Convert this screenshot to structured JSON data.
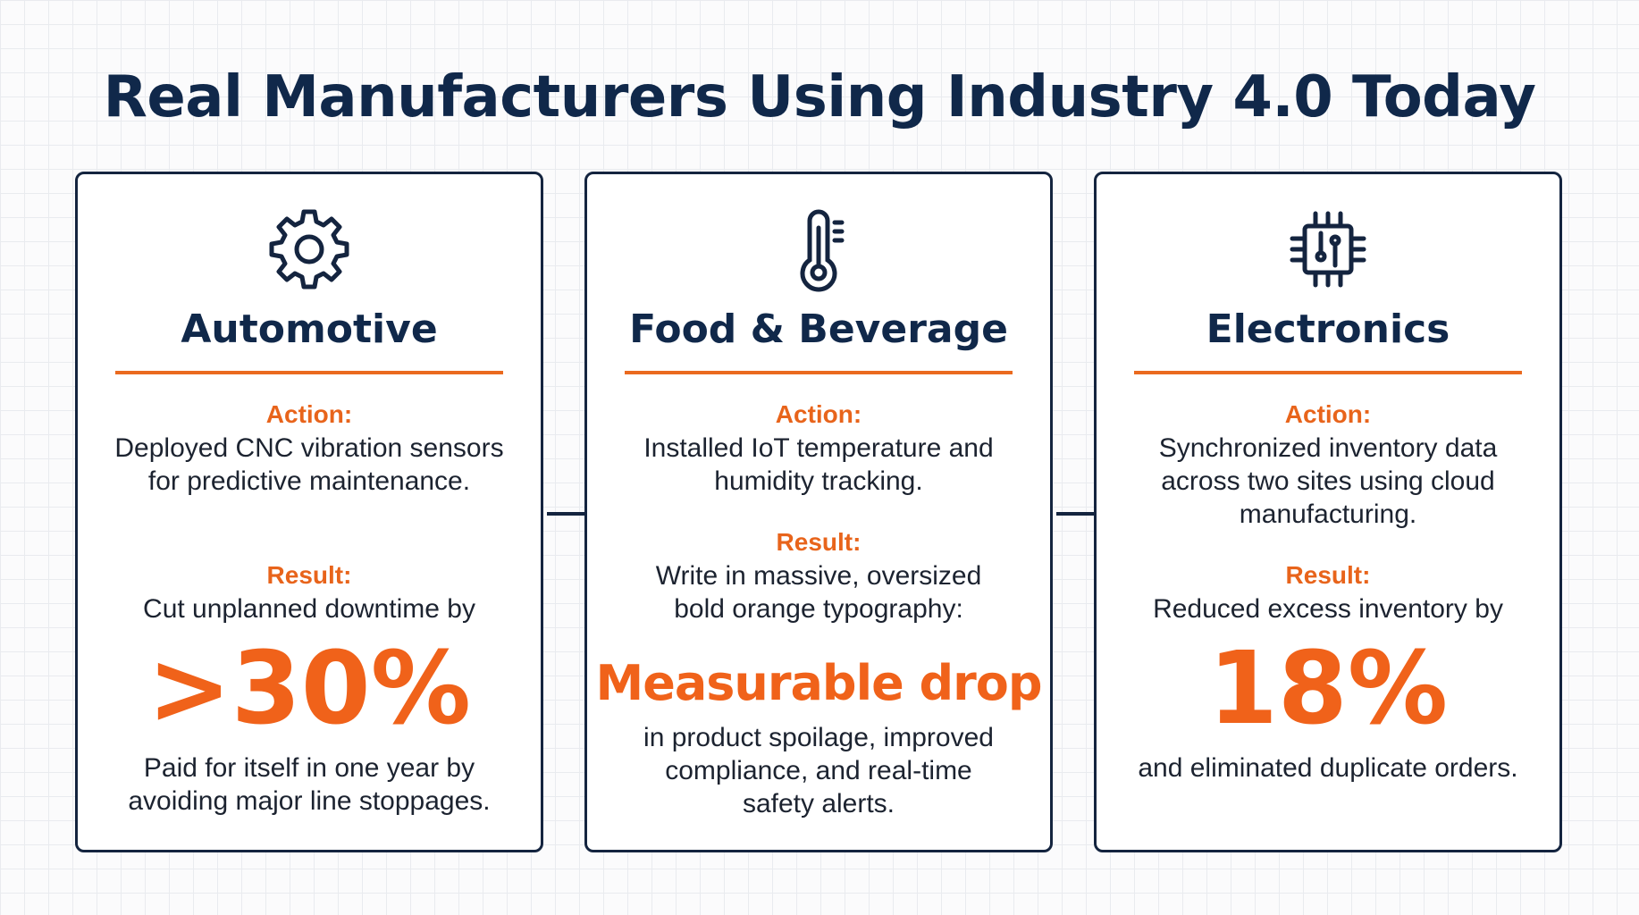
{
  "title": "Real Manufacturers Using Industry 4.0 Today",
  "accent_color": "#ea6a1f",
  "navy_color": "#10284a",
  "cards": [
    {
      "icon": "gear-icon",
      "heading": "Automotive",
      "action_label": "Action:",
      "action_lines": [
        "Deployed CNC vibration sensors",
        "for predictive maintenance."
      ],
      "result_label": "Result:",
      "result_lines": [
        "Cut unplanned downtime by"
      ],
      "highlight": ">30%",
      "footer_lines": [
        "Paid for itself in one year by",
        "avoiding major line stoppages."
      ]
    },
    {
      "icon": "thermometer-icon",
      "heading": "Food & Beverage",
      "action_label": "Action:",
      "action_lines": [
        "Installed IoT temperature and",
        "humidity tracking."
      ],
      "result_label": "Result:",
      "result_lines": [
        "Write in massive, oversized",
        "bold orange typography:"
      ],
      "highlight": "Measurable drop",
      "footer_lines": [
        "in product spoilage, improved",
        "compliance, and real-time",
        "safety alerts."
      ]
    },
    {
      "icon": "circuit-chip-icon",
      "heading": "Electronics",
      "action_label": "Action:",
      "action_lines": [
        "Synchronized inventory data",
        "across two sites using cloud",
        "manufacturing."
      ],
      "result_label": "Result:",
      "result_lines": [
        "Reduced excess inventory by"
      ],
      "highlight": "18%",
      "footer_lines": [
        "and eliminated duplicate orders."
      ]
    }
  ]
}
